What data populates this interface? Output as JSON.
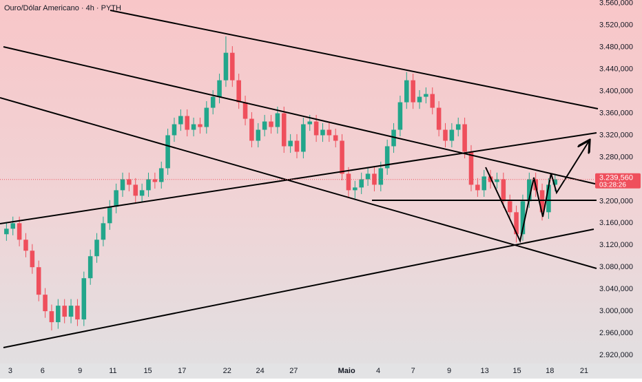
{
  "chart_data": {
    "type": "candlestick",
    "title": "Ouro/Dólar Americano · 4h · PYTH",
    "up_color": "#22a68b",
    "down_color": "#ef4f5c",
    "open": [
      3140,
      3150,
      3160,
      3130,
      3110,
      3080,
      3030,
      3000,
      2980,
      3010,
      2990,
      3010,
      2985,
      3060,
      3100,
      3130,
      3160,
      3190,
      3220,
      3240,
      3230,
      3210,
      3220,
      3240,
      3235,
      3260,
      3320,
      3340,
      3355,
      3330,
      3340,
      3335,
      3370,
      3390,
      3420,
      3470,
      3420,
      3380,
      3350,
      3310,
      3330,
      3345,
      3335,
      3360,
      3300,
      3310,
      3290,
      3340,
      3345,
      3320,
      3330,
      3320,
      3310,
      3250,
      3220,
      3225,
      3240,
      3250,
      3230,
      3260,
      3300,
      3330,
      3380,
      3420,
      3380,
      3390,
      3395,
      3370,
      3330,
      3310,
      3330,
      3340,
      3290,
      3230,
      3220,
      3245,
      3235,
      3240,
      3200,
      3180,
      3140,
      3200,
      3240,
      3220,
      3180,
      3230
    ],
    "high": [
      3162,
      3172,
      3172,
      3142,
      3122,
      3092,
      3042,
      3012,
      3022,
      3022,
      3022,
      3022,
      3072,
      3112,
      3142,
      3172,
      3202,
      3232,
      3252,
      3252,
      3242,
      3232,
      3252,
      3252,
      3272,
      3332,
      3352,
      3367,
      3367,
      3352,
      3352,
      3382,
      3402,
      3432,
      3500,
      3482,
      3432,
      3392,
      3362,
      3342,
      3357,
      3357,
      3372,
      3372,
      3322,
      3322,
      3352,
      3357,
      3357,
      3342,
      3342,
      3332,
      3322,
      3262,
      3237,
      3252,
      3262,
      3262,
      3272,
      3312,
      3342,
      3392,
      3435,
      3432,
      3402,
      3407,
      3407,
      3382,
      3342,
      3342,
      3352,
      3352,
      3302,
      3242,
      3257,
      3257,
      3252,
      3252,
      3212,
      3192,
      3212,
      3252,
      3252,
      3232,
      3242,
      3250
    ],
    "low": [
      3128,
      3138,
      3118,
      3098,
      3068,
      3018,
      2988,
      2965,
      2968,
      2978,
      2978,
      2973,
      2973,
      3048,
      3088,
      3118,
      3148,
      3178,
      3208,
      3218,
      3198,
      3198,
      3208,
      3223,
      3223,
      3248,
      3308,
      3328,
      3318,
      3318,
      3323,
      3323,
      3358,
      3378,
      3408,
      3408,
      3368,
      3338,
      3298,
      3298,
      3318,
      3323,
      3323,
      3288,
      3288,
      3278,
      3278,
      3328,
      3308,
      3308,
      3308,
      3298,
      3238,
      3208,
      3205,
      3213,
      3228,
      3218,
      3218,
      3248,
      3288,
      3318,
      3368,
      3368,
      3368,
      3378,
      3358,
      3318,
      3298,
      3298,
      3318,
      3278,
      3218,
      3208,
      3208,
      3223,
      3223,
      3188,
      3168,
      3125,
      3128,
      3188,
      3208,
      3165,
      3168,
      3218
    ],
    "close": [
      3150,
      3160,
      3130,
      3110,
      3080,
      3030,
      3000,
      2980,
      3010,
      2990,
      3010,
      2985,
      3060,
      3100,
      3130,
      3160,
      3190,
      3220,
      3240,
      3230,
      3210,
      3220,
      3240,
      3235,
      3260,
      3320,
      3340,
      3355,
      3330,
      3340,
      3335,
      3370,
      3390,
      3420,
      3470,
      3420,
      3380,
      3350,
      3310,
      3330,
      3345,
      3335,
      3360,
      3300,
      3310,
      3290,
      3340,
      3345,
      3320,
      3330,
      3320,
      3310,
      3250,
      3220,
      3225,
      3240,
      3250,
      3230,
      3260,
      3300,
      3330,
      3380,
      3420,
      3380,
      3390,
      3395,
      3370,
      3330,
      3310,
      3330,
      3340,
      3290,
      3230,
      3220,
      3245,
      3235,
      3240,
      3200,
      3180,
      3140,
      3200,
      3240,
      3220,
      3180,
      3230,
      3240
    ],
    "xlim": [
      -1,
      91
    ],
    "xticks": [
      {
        "value": 0.6,
        "label": "3"
      },
      {
        "value": 5.6,
        "label": "6"
      },
      {
        "value": 11.4,
        "label": "9"
      },
      {
        "value": 16.5,
        "label": "11"
      },
      {
        "value": 21.9,
        "label": "15"
      },
      {
        "value": 27.2,
        "label": "17"
      },
      {
        "value": 34.2,
        "label": "22"
      },
      {
        "value": 39.3,
        "label": "24"
      },
      {
        "value": 44.5,
        "label": "27"
      },
      {
        "value": 52.7,
        "label": "Maio"
      },
      {
        "value": 57.6,
        "label": "4"
      },
      {
        "value": 63,
        "label": "7"
      },
      {
        "value": 68.6,
        "label": "9"
      },
      {
        "value": 74.1,
        "label": "13"
      },
      {
        "value": 79.1,
        "label": "15"
      },
      {
        "value": 84.2,
        "label": "18"
      },
      {
        "value": 89.5,
        "label": "21"
      }
    ],
    "ylim": [
      2905,
      3566
    ],
    "yticks": [
      {
        "value": 3560,
        "label": "3.560,000"
      },
      {
        "value": 3520,
        "label": "3.520,000"
      },
      {
        "value": 3480,
        "label": "3.480,000"
      },
      {
        "value": 3440,
        "label": "3.440,000"
      },
      {
        "value": 3400,
        "label": "3.400,000"
      },
      {
        "value": 3360,
        "label": "3.360,000"
      },
      {
        "value": 3320,
        "label": "3.320,000"
      },
      {
        "value": 3280,
        "label": "3.280,000"
      },
      {
        "value": 3240,
        "label": "3.240,000"
      },
      {
        "value": 3200,
        "label": "3.200,000"
      },
      {
        "value": 3160,
        "label": "3.160,000"
      },
      {
        "value": 3120,
        "label": "3.120,000"
      },
      {
        "value": 3080,
        "label": "3.080,000"
      },
      {
        "value": 3040,
        "label": "3.040,000"
      },
      {
        "value": 3000,
        "label": "3.000,000"
      },
      {
        "value": 2960,
        "label": "2.960,000"
      },
      {
        "value": 2920,
        "label": "2.920,000"
      }
    ],
    "current_price": {
      "value": 3239.56,
      "label": "3.239,560"
    },
    "countdown": "03:28:26"
  }
}
